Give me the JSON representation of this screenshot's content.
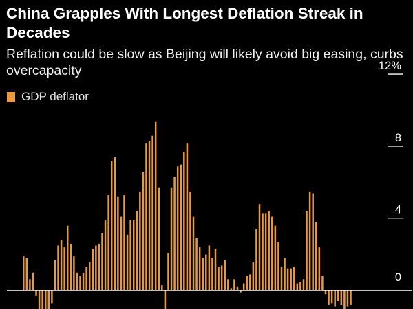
{
  "title": "China Grapples With Longest Deflation Streak in Decades",
  "subtitle": "Reflation could be slow as Beijing will likely avoid big easing, curbs overcapacity",
  "colors": {
    "bar": "#e89a3c",
    "background": "#000000",
    "text": "#ffffff",
    "axis": "#ffffff"
  },
  "chart_data": {
    "type": "bar",
    "title": "China Grapples With Longest Deflation Streak in Decades",
    "subtitle": "Reflation could be slow as Beijing will likely avoid big easing, curbs overcapacity",
    "legend": [
      "GDP deflator"
    ],
    "legend_position": "top-left",
    "xlabel": "",
    "ylabel": "",
    "y_ticks": [
      "0",
      "4",
      "8",
      "12%"
    ],
    "y_tick_values": [
      0,
      4,
      8,
      12
    ],
    "ylim": [
      -1.4,
      12.4
    ],
    "grid": false,
    "series": [
      {
        "name": "GDP deflator",
        "values": [
          1.9,
          1.8,
          0.6,
          1.0,
          -0.3,
          -1.2,
          -1.4,
          -1.4,
          -1.3,
          -0.7,
          1.7,
          2.5,
          2.8,
          2.4,
          3.6,
          2.6,
          1.9,
          1.0,
          0.8,
          1.0,
          1.3,
          1.6,
          2.3,
          2.5,
          2.6,
          3.2,
          3.9,
          5.3,
          7.2,
          7.4,
          5.2,
          4.1,
          5.3,
          3.1,
          3.9,
          3.9,
          4.4,
          5.5,
          6.6,
          8.2,
          8.3,
          8.6,
          9.4,
          5.7,
          0.3,
          -1.3,
          2.1,
          5.7,
          6.3,
          6.9,
          7.0,
          7.7,
          8.2,
          5.5,
          4.1,
          2.9,
          2.4,
          1.8,
          2.0,
          2.5,
          1.8,
          2.3,
          1.3,
          1.4,
          1.7,
          0.6,
          0.1,
          0.6,
          0.2,
          -0.1,
          0.4,
          0.8,
          0.9,
          1.6,
          3.4,
          4.8,
          4.3,
          4.3,
          4.4,
          4.1,
          3.6,
          2.7,
          1.3,
          1.8,
          1.2,
          1.2,
          1.3,
          0.4,
          0.5,
          0.6,
          4.4,
          5.5,
          5.4,
          3.8,
          2.4,
          0.8,
          -0.2,
          -0.8,
          -0.7,
          -0.9,
          -0.6,
          -0.8,
          -1.2,
          -0.9,
          -0.8
        ]
      }
    ]
  }
}
